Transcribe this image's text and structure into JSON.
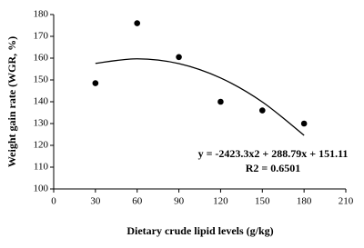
{
  "chart_data": {
    "type": "scatter",
    "x_label": "Dietary crude lipid levels (g/kg)",
    "y_label": "Weight gain rate (WGR, %)",
    "annotations": [
      "y = -2423.3x2 + 288.79x + 151.11",
      "R2 = 0.6501"
    ],
    "xlim": [
      0,
      210
    ],
    "xticks": [
      0,
      30,
      60,
      90,
      120,
      150,
      180,
      210
    ],
    "ylim": [
      100,
      180
    ],
    "yticks": [
      100,
      110,
      120,
      130,
      140,
      150,
      160,
      170,
      180
    ],
    "grid": false,
    "series": [
      {
        "kind": "points",
        "color": "#000000",
        "x": [
          30,
          60,
          90,
          120,
          150,
          180
        ],
        "values": [
          148.5,
          176,
          160.5,
          140,
          136,
          130
        ]
      },
      {
        "kind": "line",
        "color": "#000000",
        "x": [
          30,
          60,
          90,
          120,
          150,
          180
        ],
        "values": [
          157.6,
          159.7,
          157.5,
          150.9,
          139.9,
          124.6
        ]
      }
    ]
  }
}
